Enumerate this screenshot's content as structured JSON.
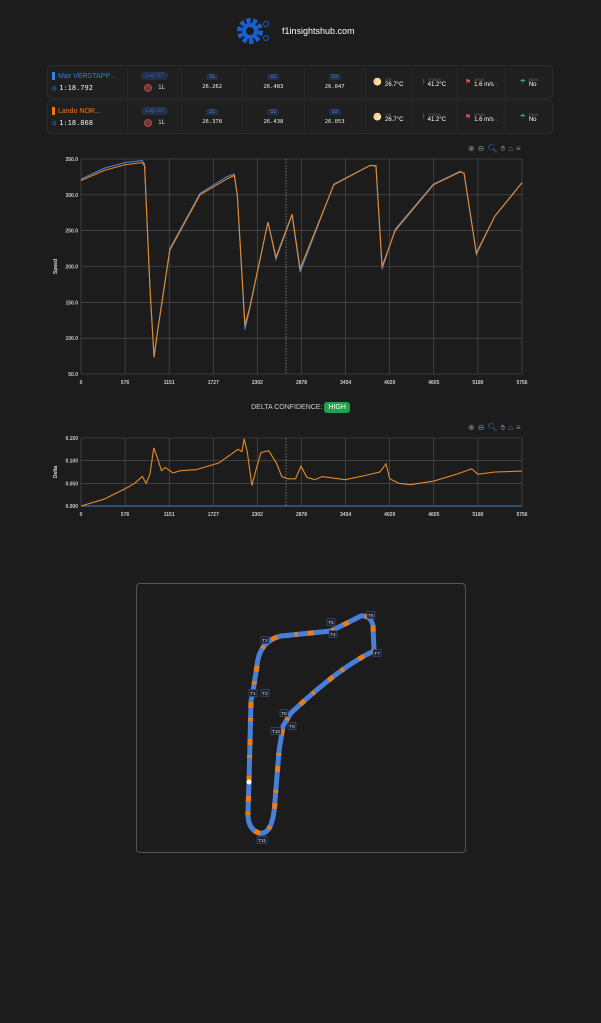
{
  "header": {
    "site": "f1insightshub.com",
    "logo": "gear-logo"
  },
  "drivers": [
    {
      "name": "Max VERSTAPP...",
      "color": "#3a7fd8",
      "lap": "Lap 17",
      "lap_time": "1:18.792",
      "tyre": "1L",
      "s1": "26.262",
      "s2": "26.483",
      "s3": "26.047"
    },
    {
      "name": "Lando NOR...",
      "color": "#f07c10",
      "lap": "Lap 20",
      "lap_time": "1:18.868",
      "tyre": "1L",
      "s1": "26.378",
      "s2": "26.438",
      "s3": "26.053"
    }
  ],
  "labels": {
    "s1": "S1",
    "s2": "S2",
    "s3": "S3",
    "air": "AIR",
    "track": "TRACK",
    "wind": "WIND",
    "rain": "RAIN"
  },
  "weather": {
    "air": "26.7°C",
    "track": "41.2°C",
    "wind": "1.6 m/s",
    "wind_dir": "E",
    "rain": "No"
  },
  "toolbar": [
    "zoom-in-icon",
    "zoom-out-icon",
    "zoom-select-icon",
    "pan-hand-icon",
    "home-icon",
    "menu-icon"
  ],
  "confidence": {
    "label": "DELTA CONFIDENCE:",
    "value": "HIGH",
    "color": "#1fa34a"
  },
  "chart_data": [
    {
      "type": "line",
      "ylabel": "Speed",
      "ylim": [
        50,
        350
      ],
      "yticks": [
        "50.0",
        "100.0",
        "150.0",
        "200.0",
        "250.0",
        "300.0",
        "350.0"
      ],
      "xlim": [
        0,
        5756
      ],
      "xticks": [
        "0",
        "576",
        "1151",
        "1727",
        "2302",
        "2878",
        "3454",
        "4029",
        "4605",
        "5180",
        "5756"
      ],
      "grid": true,
      "marker_x": 2676,
      "series": [
        {
          "color": "#4a7fd0",
          "x": [
            0,
            300,
            576,
            800,
            830,
            900,
            953,
            1000,
            1160,
            1553,
            1900,
            2000,
            2040,
            2140,
            2200,
            2440,
            2545,
            2755,
            2860,
            3300,
            3773,
            3850,
            3930,
            4100,
            4600,
            4950,
            5000,
            5160,
            5400,
            5756
          ],
          "y": [
            322,
            337,
            345,
            348,
            343,
            170,
            76,
            110,
            225,
            302,
            325,
            329,
            300,
            112,
            140,
            262,
            210,
            272,
            192,
            315,
            341,
            341,
            196,
            252,
            315,
            333,
            330,
            217,
            270,
            317
          ]
        },
        {
          "color": "#e58a2a",
          "x": [
            0,
            300,
            576,
            800,
            830,
            900,
            953,
            1000,
            1160,
            1553,
            1900,
            2000,
            2040,
            2140,
            2200,
            2440,
            2545,
            2755,
            2860,
            3300,
            3773,
            3850,
            3930,
            4100,
            4600,
            4950,
            5000,
            5160,
            5400,
            5756
          ],
          "y": [
            320,
            334,
            342,
            345,
            340,
            170,
            73,
            110,
            223,
            300,
            322,
            327,
            300,
            118,
            142,
            262,
            213,
            273,
            197,
            314,
            341,
            340,
            200,
            250,
            314,
            332,
            330,
            219,
            270,
            317
          ]
        }
      ]
    },
    {
      "type": "line",
      "ylabel": "Delta",
      "ylim": [
        0,
        0.15
      ],
      "yticks": [
        "0.000",
        "0.050",
        "0.100",
        "0.150"
      ],
      "xlim": [
        0,
        5756
      ],
      "xticks": [
        "0",
        "576",
        "1151",
        "1727",
        "2302",
        "2878",
        "3454",
        "4029",
        "4605",
        "5180",
        "5756"
      ],
      "grid": true,
      "marker_x": 2676,
      "series": [
        {
          "color": "#3a7fd8",
          "x": [
            0,
            5756
          ],
          "y": [
            0,
            0
          ]
        },
        {
          "color": "#e58a2a",
          "x": [
            0,
            300,
            576,
            700,
            800,
            850,
            900,
            950,
            1000,
            1050,
            1100,
            1200,
            1300,
            1500,
            1800,
            2050,
            2100,
            2130,
            2170,
            2230,
            2300,
            2350,
            2450,
            2550,
            2620,
            2700,
            2800,
            2870,
            2950,
            3050,
            3150,
            3450,
            3700,
            3900,
            3980,
            4030,
            4150,
            4300,
            4605,
            4900,
            5100,
            5180,
            5400,
            5756
          ],
          "y": [
            0,
            0.015,
            0.038,
            0.05,
            0.065,
            0.05,
            0.07,
            0.128,
            0.105,
            0.078,
            0.085,
            0.073,
            0.078,
            0.08,
            0.095,
            0.125,
            0.12,
            0.148,
            0.12,
            0.045,
            0.09,
            0.118,
            0.122,
            0.095,
            0.065,
            0.06,
            0.06,
            0.088,
            0.063,
            0.058,
            0.065,
            0.058,
            0.067,
            0.075,
            0.093,
            0.06,
            0.05,
            0.047,
            0.055,
            0.07,
            0.082,
            0.07,
            0.075,
            0.077
          ]
        }
      ]
    }
  ],
  "track": {
    "turns": [
      "T1",
      "T2",
      "T3",
      "T4",
      "T5",
      "T6",
      "T7",
      "T8",
      "T9",
      "T10",
      "T11"
    ],
    "colors": {
      "driver1": "#4a7fd8",
      "driver2": "#f07c10"
    }
  }
}
